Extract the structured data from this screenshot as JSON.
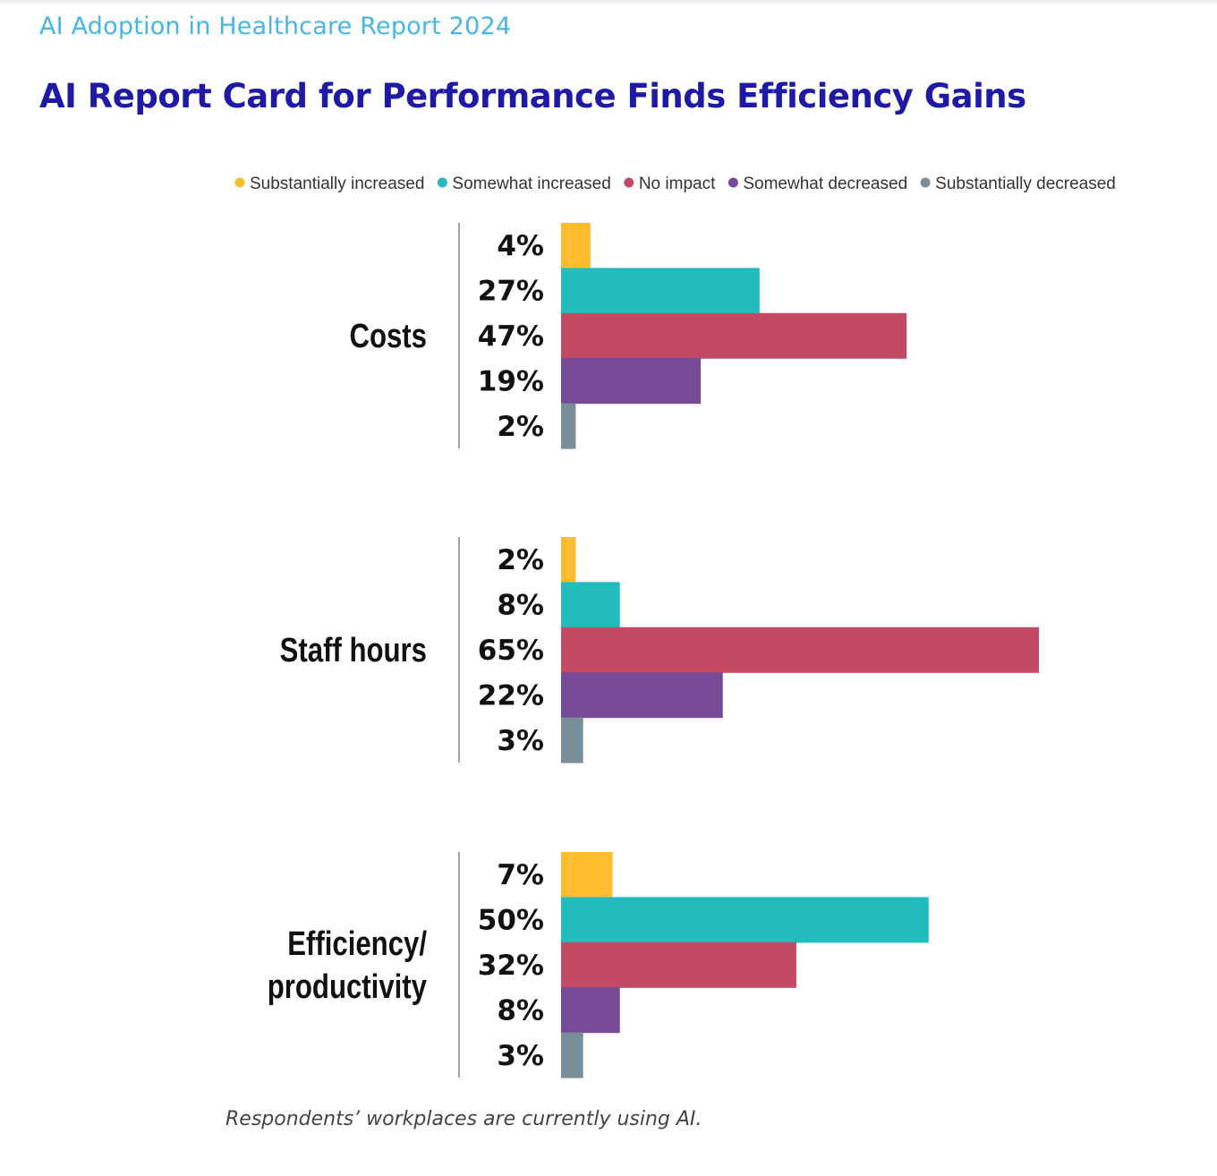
{
  "header": {
    "eyebrow": "AI Adoption in Healthcare Report 2024",
    "title": "AI Report Card for Performance Finds Efficiency Gains"
  },
  "caption": "Respondents’ workplaces are currently using AI.",
  "chart_data": {
    "type": "bar",
    "orientation": "horizontal",
    "legend_position": "top",
    "grid": false,
    "xlim": [
      0,
      65
    ],
    "series": [
      {
        "name": "Substantially increased",
        "color": "#fdbd2c"
      },
      {
        "name": "Somewhat increased",
        "color": "#22bcbf"
      },
      {
        "name": "No impact",
        "color": "#c44962"
      },
      {
        "name": "Somewhat decreased",
        "color": "#764a96"
      },
      {
        "name": "Substantially decreased",
        "color": "#788e98"
      }
    ],
    "groups": [
      {
        "label": [
          "Costs"
        ],
        "values": [
          4,
          27,
          47,
          19,
          2
        ],
        "labels": [
          "4%",
          "27%",
          "47%",
          "19%",
          "2%"
        ]
      },
      {
        "label": [
          "Staff hours"
        ],
        "values": [
          2,
          8,
          65,
          22,
          3
        ],
        "labels": [
          "2%",
          "8%",
          "65%",
          "22%",
          "3%"
        ]
      },
      {
        "label": [
          "Efficiency/",
          "productivity"
        ],
        "values": [
          7,
          50,
          32,
          8,
          3
        ],
        "labels": [
          "7%",
          "50%",
          "32%",
          "8%",
          "3%"
        ]
      }
    ]
  }
}
